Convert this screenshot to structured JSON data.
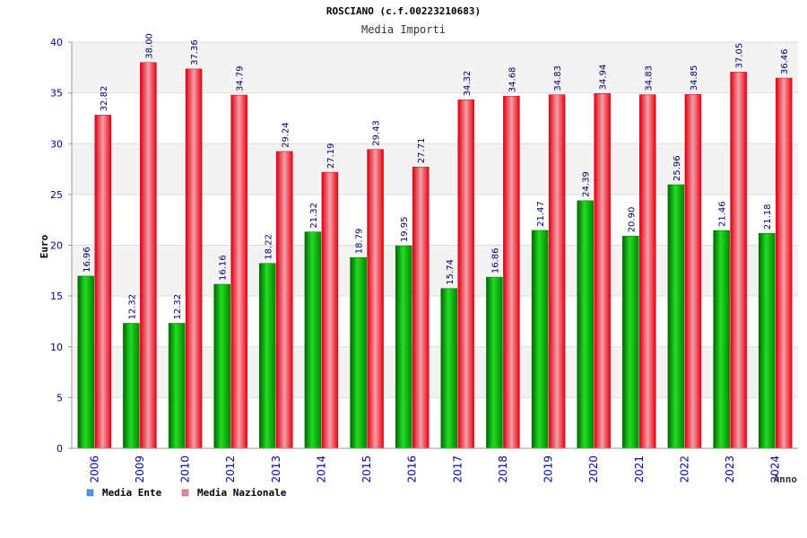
{
  "chart_data": {
    "type": "bar",
    "title": "ROSCIANO (c.f.00223210683)",
    "subtitle": "Media Importi",
    "xlabel": "Anno",
    "ylabel": "Euro",
    "ylim": [
      0,
      40
    ],
    "yticks": [
      "0",
      "5",
      "10",
      "15",
      "20",
      "25",
      "30",
      "35",
      "40"
    ],
    "grid": true,
    "legend_position": "bottom-left",
    "categories": [
      "2006",
      "2009",
      "2010",
      "2012",
      "2013",
      "2014",
      "2015",
      "2016",
      "2017",
      "2018",
      "2019",
      "2020",
      "2021",
      "2022",
      "2023",
      "2024"
    ],
    "series": [
      {
        "name": "Media Ente",
        "color": "#00aa00",
        "values": [
          16.96,
          12.32,
          12.32,
          16.16,
          18.22,
          21.32,
          18.79,
          19.95,
          15.74,
          16.86,
          21.47,
          24.39,
          20.9,
          25.96,
          21.46,
          21.18
        ],
        "labels": [
          "16.96",
          "12.32",
          "12.32",
          "16.16",
          "18.22",
          "21.32",
          "18.79",
          "19.95",
          "15.74",
          "16.86",
          "21.47",
          "24.39",
          "20.90",
          "25.96",
          "21.46",
          "21.18"
        ]
      },
      {
        "name": "Media Nazionale",
        "color": "#ee1122",
        "values": [
          32.82,
          38.0,
          37.36,
          34.79,
          29.24,
          27.19,
          29.43,
          27.71,
          34.32,
          34.68,
          34.83,
          34.94,
          34.83,
          34.85,
          37.05,
          36.46
        ],
        "labels": [
          "32.82",
          "38.00",
          "37.36",
          "34.79",
          "29.24",
          "27.19",
          "29.43",
          "27.71",
          "34.32",
          "34.68",
          "34.83",
          "34.94",
          "34.83",
          "34.85",
          "37.05",
          "36.46"
        ]
      }
    ],
    "legend": [
      {
        "label": "Media Ente",
        "swatch": "#5599ee"
      },
      {
        "label": "Media Nazionale",
        "swatch": "#dd88aa"
      }
    ],
    "colors": {
      "band_alt": "#f3f3f3",
      "grid": "#dddddd",
      "tick_text": "#0000aa",
      "value_text": "#000066"
    }
  }
}
